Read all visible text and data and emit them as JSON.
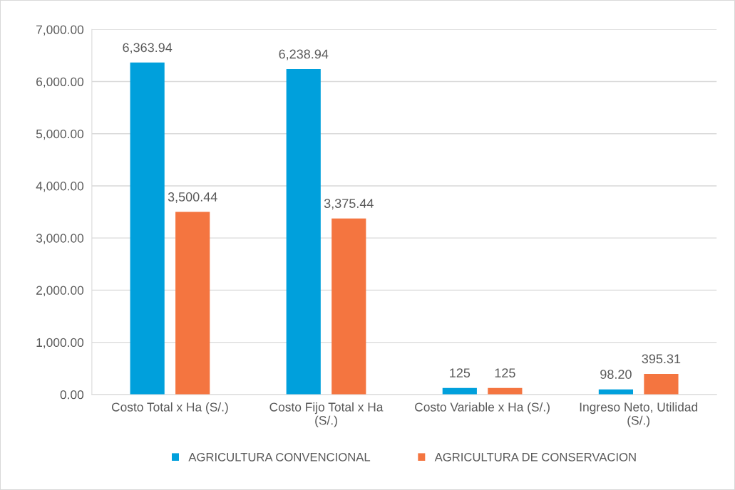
{
  "chart_data": {
    "type": "bar",
    "categories": [
      "Costo Total x Ha (S/.)",
      "Costo Fijo Total x Ha\n(S/.)",
      "Costo Variable x Ha (S/.)",
      "Ingreso Neto, Utilidad\n(S/.)"
    ],
    "series": [
      {
        "name": "AGRICULTURA CONVENCIONAL",
        "color": "#00a0dc",
        "values": [
          6363.94,
          6238.94,
          125,
          98.2
        ],
        "value_labels": [
          "6,363.94",
          "6,238.94",
          "125",
          "98.20"
        ]
      },
      {
        "name": "AGRICULTURA DE CONSERVACION",
        "color": "#f47540",
        "values": [
          3500.44,
          3375.44,
          125,
          395.31
        ],
        "value_labels": [
          "3,500.44",
          "3,375.44",
          "125",
          "395.31"
        ]
      }
    ],
    "ylim": [
      0,
      7000
    ],
    "yticks": [
      {
        "value": 0,
        "label": "0.00"
      },
      {
        "value": 1000,
        "label": "1,000.00"
      },
      {
        "value": 2000,
        "label": "2,000.00"
      },
      {
        "value": 3000,
        "label": "3,000.00"
      },
      {
        "value": 4000,
        "label": "4,000.00"
      },
      {
        "value": 5000,
        "label": "5,000.00"
      },
      {
        "value": 6000,
        "label": "6,000.00"
      },
      {
        "value": 7000,
        "label": "7,000.00"
      }
    ],
    "grid": "y",
    "legend": "bottom"
  }
}
